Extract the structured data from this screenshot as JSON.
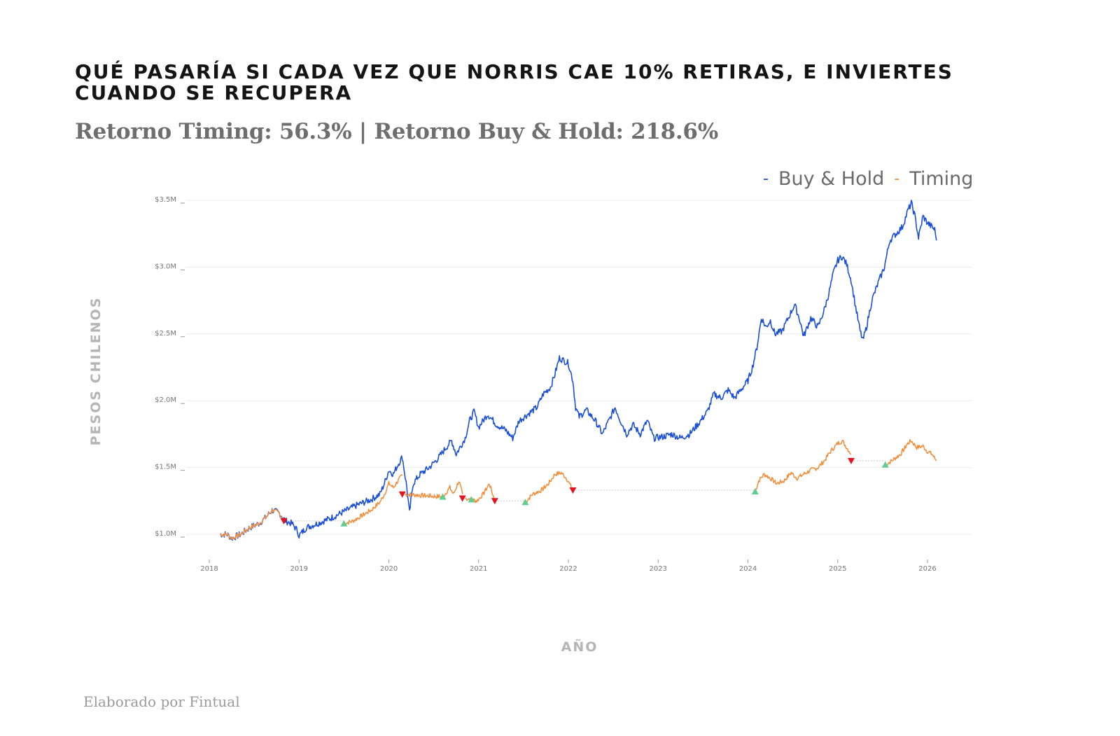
{
  "title": "Qué pasaría si cada vez que Norris cae 10% retiras, e inviertes cuando se recupera",
  "subtitle": "Retorno Timing: 56.3% | Retorno Buy & Hold: 218.6%",
  "footer": "Elaborado por Fintual",
  "legend": [
    {
      "label": "Buy & Hold",
      "color": "#1a4fd6"
    },
    {
      "label": "Timing",
      "color": "#f28c38"
    }
  ],
  "chart_data": {
    "type": "line",
    "title": "Qué pasaría si cada vez que Norris cae 10% retiras, e inviertes cuando se recupera",
    "subtitle": "Retorno Timing: 56.3% | Retorno Buy & Hold: 218.6%",
    "xlabel": "AÑO",
    "ylabel": "PESOS CHILENOS",
    "xlim": [
      2018.0,
      2026.15
    ],
    "ylim": [
      0.9,
      3.55
    ],
    "y_unit": "millions CLP",
    "x_ticks": [
      2018,
      2019,
      2020,
      2021,
      2022,
      2023,
      2024,
      2025,
      2026
    ],
    "x_tick_labels": [
      "2018",
      "2019",
      "2020",
      "2021",
      "2022",
      "2023",
      "2024",
      "2025",
      "2026"
    ],
    "y_ticks": [
      1.0,
      1.5,
      2.0,
      2.5,
      3.0,
      3.5
    ],
    "y_tick_labels": [
      "$1.0M",
      "$1.5M",
      "$2.0M",
      "$2.5M",
      "$3.0M",
      "$3.5M"
    ],
    "grid": "horizontal",
    "legend_position": "top-right",
    "series": [
      {
        "name": "Buy & Hold",
        "color": "#1a4fd6",
        "points": [
          [
            2018.12,
            1.0
          ],
          [
            2018.2,
            1.0
          ],
          [
            2018.25,
            0.97
          ],
          [
            2018.35,
            1.0
          ],
          [
            2018.45,
            1.05
          ],
          [
            2018.55,
            1.08
          ],
          [
            2018.62,
            1.12
          ],
          [
            2018.7,
            1.18
          ],
          [
            2018.78,
            1.16
          ],
          [
            2018.85,
            1.1
          ],
          [
            2018.92,
            1.08
          ],
          [
            2018.98,
            1.03
          ],
          [
            2019.0,
            0.99
          ],
          [
            2019.08,
            1.05
          ],
          [
            2019.2,
            1.08
          ],
          [
            2019.35,
            1.12
          ],
          [
            2019.5,
            1.17
          ],
          [
            2019.65,
            1.22
          ],
          [
            2019.8,
            1.26
          ],
          [
            2019.9,
            1.3
          ],
          [
            2019.95,
            1.38
          ],
          [
            2020.0,
            1.48
          ],
          [
            2020.05,
            1.45
          ],
          [
            2020.1,
            1.52
          ],
          [
            2020.15,
            1.58
          ],
          [
            2020.2,
            1.35
          ],
          [
            2020.23,
            1.16
          ],
          [
            2020.27,
            1.38
          ],
          [
            2020.35,
            1.45
          ],
          [
            2020.45,
            1.5
          ],
          [
            2020.55,
            1.57
          ],
          [
            2020.65,
            1.66
          ],
          [
            2020.7,
            1.7
          ],
          [
            2020.75,
            1.6
          ],
          [
            2020.85,
            1.72
          ],
          [
            2020.9,
            1.85
          ],
          [
            2020.95,
            1.92
          ],
          [
            2021.0,
            1.8
          ],
          [
            2021.1,
            1.9
          ],
          [
            2021.2,
            1.82
          ],
          [
            2021.3,
            1.78
          ],
          [
            2021.38,
            1.72
          ],
          [
            2021.45,
            1.85
          ],
          [
            2021.55,
            1.9
          ],
          [
            2021.65,
            1.95
          ],
          [
            2021.72,
            2.05
          ],
          [
            2021.8,
            2.1
          ],
          [
            2021.85,
            2.2
          ],
          [
            2021.9,
            2.32
          ],
          [
            2021.95,
            2.3
          ],
          [
            2022.0,
            2.28
          ],
          [
            2022.05,
            2.15
          ],
          [
            2022.08,
            1.95
          ],
          [
            2022.12,
            1.88
          ],
          [
            2022.2,
            1.93
          ],
          [
            2022.3,
            1.85
          ],
          [
            2022.38,
            1.75
          ],
          [
            2022.45,
            1.85
          ],
          [
            2022.52,
            1.95
          ],
          [
            2022.58,
            1.85
          ],
          [
            2022.65,
            1.75
          ],
          [
            2022.72,
            1.82
          ],
          [
            2022.8,
            1.75
          ],
          [
            2022.88,
            1.85
          ],
          [
            2022.95,
            1.72
          ],
          [
            2023.05,
            1.73
          ],
          [
            2023.15,
            1.75
          ],
          [
            2023.25,
            1.72
          ],
          [
            2023.35,
            1.75
          ],
          [
            2023.45,
            1.83
          ],
          [
            2023.55,
            1.92
          ],
          [
            2023.62,
            2.05
          ],
          [
            2023.7,
            2.02
          ],
          [
            2023.78,
            2.08
          ],
          [
            2023.85,
            2.02
          ],
          [
            2023.92,
            2.08
          ],
          [
            2024.0,
            2.15
          ],
          [
            2024.05,
            2.25
          ],
          [
            2024.1,
            2.4
          ],
          [
            2024.15,
            2.62
          ],
          [
            2024.2,
            2.55
          ],
          [
            2024.25,
            2.6
          ],
          [
            2024.3,
            2.5
          ],
          [
            2024.38,
            2.52
          ],
          [
            2024.45,
            2.62
          ],
          [
            2024.52,
            2.72
          ],
          [
            2024.58,
            2.6
          ],
          [
            2024.62,
            2.48
          ],
          [
            2024.7,
            2.62
          ],
          [
            2024.78,
            2.55
          ],
          [
            2024.85,
            2.68
          ],
          [
            2024.9,
            2.8
          ],
          [
            2024.95,
            2.95
          ],
          [
            2025.0,
            3.05
          ],
          [
            2025.05,
            3.08
          ],
          [
            2025.1,
            3.02
          ],
          [
            2025.15,
            2.9
          ],
          [
            2025.2,
            2.7
          ],
          [
            2025.25,
            2.52
          ],
          [
            2025.28,
            2.45
          ],
          [
            2025.32,
            2.55
          ],
          [
            2025.38,
            2.75
          ],
          [
            2025.45,
            2.88
          ],
          [
            2025.52,
            3.0
          ],
          [
            2025.58,
            3.2
          ],
          [
            2025.65,
            3.25
          ],
          [
            2025.72,
            3.3
          ],
          [
            2025.78,
            3.42
          ],
          [
            2025.82,
            3.48
          ],
          [
            2025.86,
            3.38
          ],
          [
            2025.9,
            3.22
          ],
          [
            2025.95,
            3.38
          ],
          [
            2026.0,
            3.33
          ],
          [
            2026.05,
            3.3
          ],
          [
            2026.08,
            3.28
          ],
          [
            2026.1,
            3.2
          ]
        ]
      },
      {
        "name": "Timing",
        "color": "#f28c38",
        "segments_note": "invested periods shown as orange line; out-of-market periods as flat dotted gray line",
        "points": [
          [
            2018.12,
            1.0
          ],
          [
            2018.2,
            1.0
          ],
          [
            2018.25,
            0.97
          ],
          [
            2018.35,
            1.0
          ],
          [
            2018.45,
            1.05
          ],
          [
            2018.55,
            1.08
          ],
          [
            2018.62,
            1.12
          ],
          [
            2018.7,
            1.18
          ],
          [
            2018.78,
            1.16
          ],
          [
            2018.83,
            1.1
          ],
          [
            2019.5,
            1.08
          ],
          [
            2019.6,
            1.1
          ],
          [
            2019.7,
            1.14
          ],
          [
            2019.8,
            1.18
          ],
          [
            2019.9,
            1.24
          ],
          [
            2019.95,
            1.3
          ],
          [
            2020.0,
            1.38
          ],
          [
            2020.05,
            1.35
          ],
          [
            2020.1,
            1.4
          ],
          [
            2020.15,
            1.44
          ],
          [
            2020.18,
            1.3
          ],
          [
            2020.6,
            1.28
          ],
          [
            2020.68,
            1.35
          ],
          [
            2020.72,
            1.3
          ],
          [
            2020.78,
            1.4
          ],
          [
            2020.82,
            1.3
          ],
          [
            2020.85,
            1.27
          ],
          [
            2020.92,
            1.26
          ],
          [
            2020.98,
            1.25
          ],
          [
            2021.05,
            1.3
          ],
          [
            2021.12,
            1.38
          ],
          [
            2021.18,
            1.25
          ],
          [
            2021.52,
            1.24
          ],
          [
            2021.6,
            1.3
          ],
          [
            2021.7,
            1.33
          ],
          [
            2021.78,
            1.38
          ],
          [
            2021.85,
            1.45
          ],
          [
            2021.92,
            1.46
          ],
          [
            2021.98,
            1.42
          ],
          [
            2022.05,
            1.33
          ],
          [
            2024.08,
            1.32
          ],
          [
            2024.12,
            1.4
          ],
          [
            2024.18,
            1.45
          ],
          [
            2024.25,
            1.42
          ],
          [
            2024.32,
            1.38
          ],
          [
            2024.4,
            1.4
          ],
          [
            2024.48,
            1.46
          ],
          [
            2024.55,
            1.42
          ],
          [
            2024.62,
            1.45
          ],
          [
            2024.7,
            1.48
          ],
          [
            2024.78,
            1.5
          ],
          [
            2024.85,
            1.55
          ],
          [
            2024.92,
            1.62
          ],
          [
            2025.0,
            1.68
          ],
          [
            2025.05,
            1.7
          ],
          [
            2025.1,
            1.65
          ],
          [
            2025.15,
            1.6
          ],
          [
            2025.53,
            1.52
          ],
          [
            2025.6,
            1.55
          ],
          [
            2025.7,
            1.6
          ],
          [
            2025.78,
            1.68
          ],
          [
            2025.82,
            1.7
          ],
          [
            2025.88,
            1.65
          ],
          [
            2025.95,
            1.66
          ],
          [
            2026.0,
            1.62
          ],
          [
            2026.05,
            1.6
          ],
          [
            2026.1,
            1.55
          ]
        ]
      }
    ],
    "signals": {
      "sell": [
        [
          2018.83,
          1.1
        ],
        [
          2020.15,
          1.3
        ],
        [
          2020.82,
          1.27
        ],
        [
          2021.18,
          1.25
        ],
        [
          2022.05,
          1.33
        ],
        [
          2025.15,
          1.55
        ]
      ],
      "buy": [
        [
          2019.5,
          1.08
        ],
        [
          2020.6,
          1.28
        ],
        [
          2020.92,
          1.26
        ],
        [
          2021.52,
          1.24
        ],
        [
          2024.08,
          1.32
        ],
        [
          2025.53,
          1.52
        ]
      ],
      "sell_color": "#e5141c",
      "buy_color": "#5fcf90"
    }
  }
}
